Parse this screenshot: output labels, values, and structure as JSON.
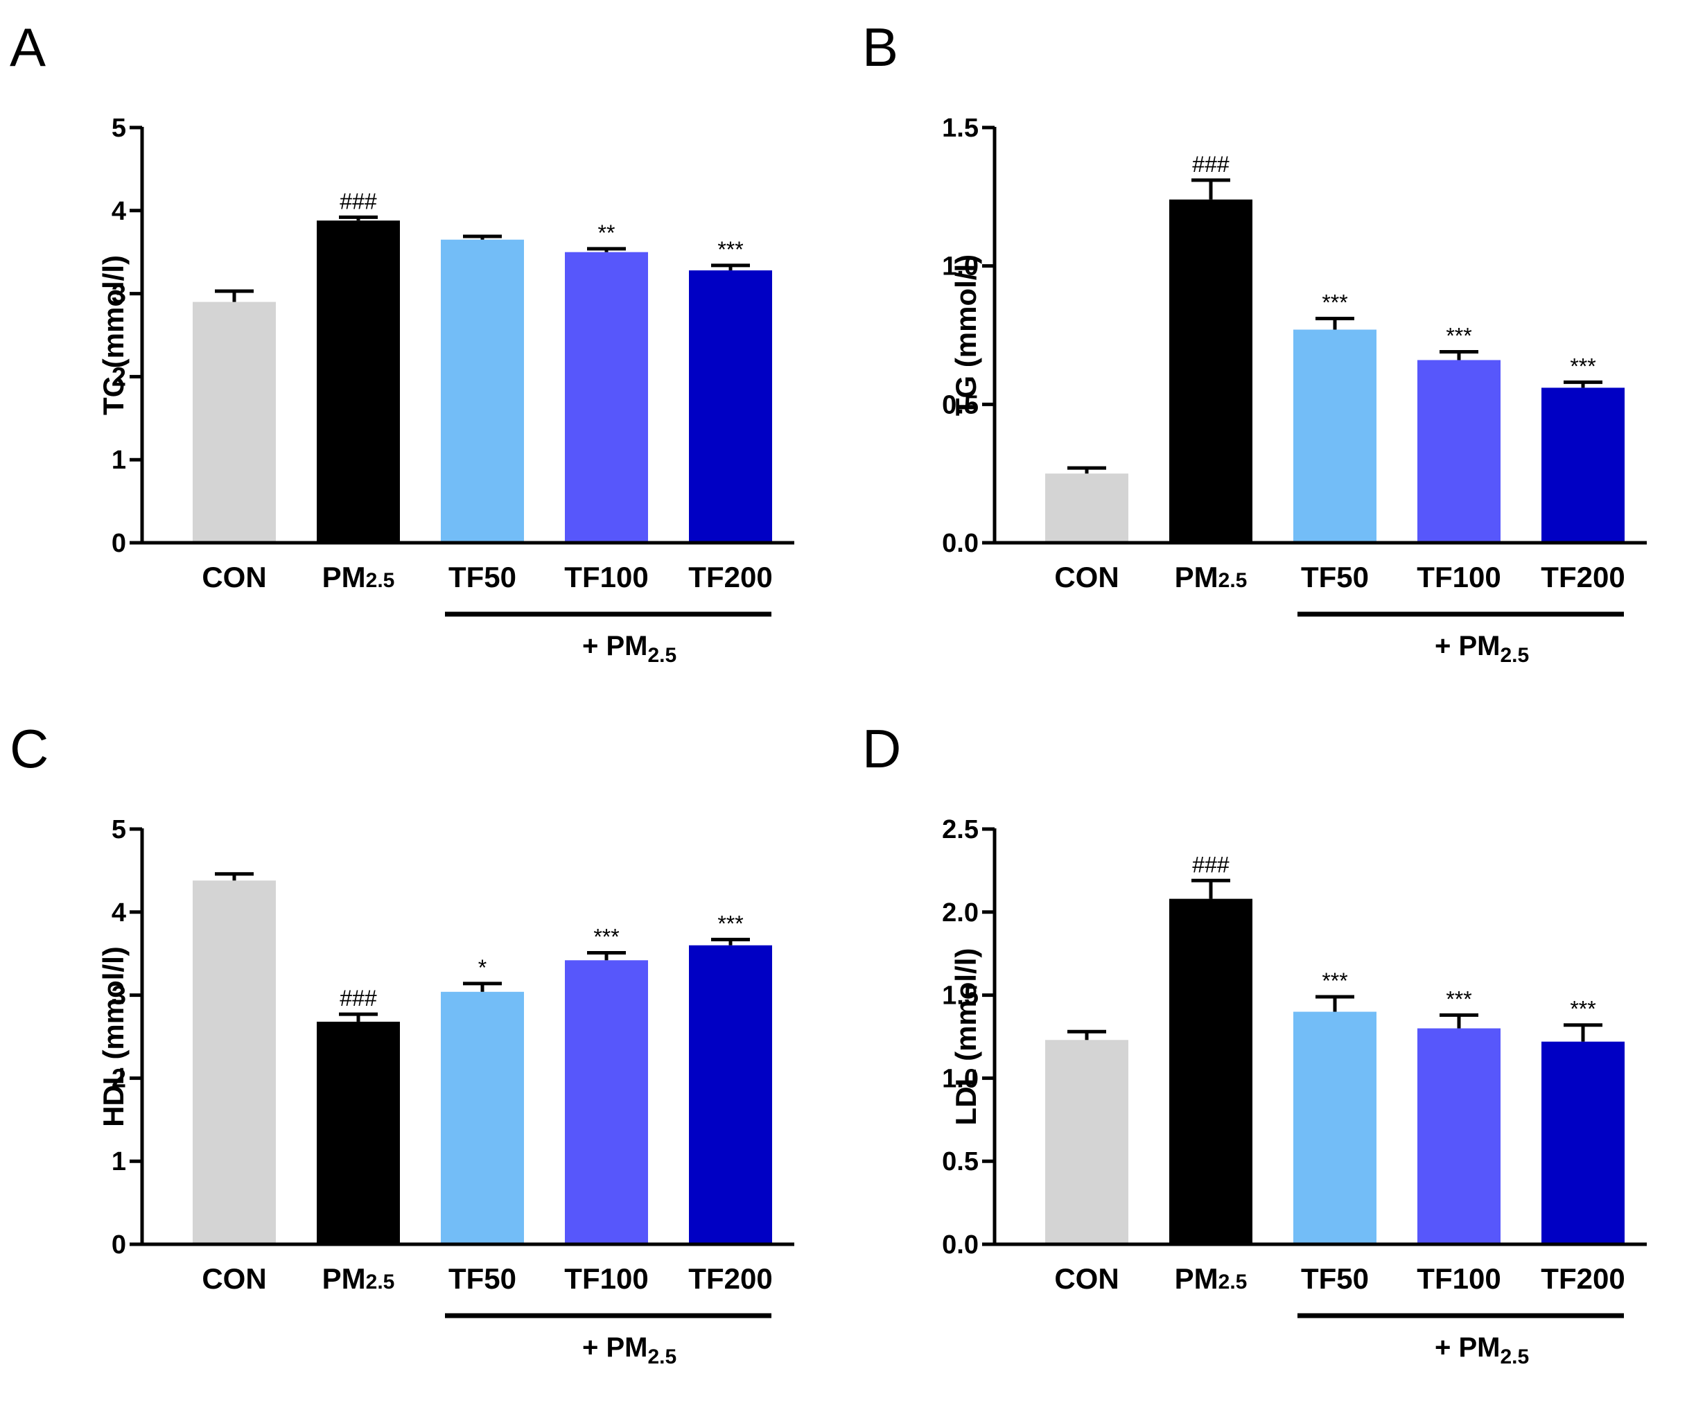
{
  "figure": {
    "group_bar_label": "+ PM",
    "group_bar_sub": "2.5"
  },
  "chart_data": [
    {
      "panel": "A",
      "type": "bar",
      "categories": [
        {
          "main": "CON",
          "sub": ""
        },
        {
          "main": "PM",
          "sub": "2.5"
        },
        {
          "main": "TF50",
          "sub": ""
        },
        {
          "main": "TF100",
          "sub": ""
        },
        {
          "main": "TF200",
          "sub": ""
        }
      ],
      "values": [
        2.9,
        3.88,
        3.65,
        3.5,
        3.28
      ],
      "errors": [
        0.13,
        0.04,
        0.04,
        0.04,
        0.06
      ],
      "annotations": [
        "",
        "###",
        "",
        "**",
        "***"
      ],
      "ylabel": "TC (mmol/l)",
      "ylim": [
        0,
        5
      ],
      "yticks": [
        0,
        1,
        2,
        3,
        4,
        5
      ],
      "ytick_labels": [
        "0",
        "1",
        "2",
        "3",
        "4",
        "5"
      ],
      "colors": [
        "#d4d4d4",
        "#000000",
        "#73bdf7",
        "#5757fb",
        "#0000c4"
      ]
    },
    {
      "panel": "B",
      "type": "bar",
      "categories": [
        {
          "main": "CON",
          "sub": ""
        },
        {
          "main": "PM",
          "sub": "2.5"
        },
        {
          "main": "TF50",
          "sub": ""
        },
        {
          "main": "TF100",
          "sub": ""
        },
        {
          "main": "TF200",
          "sub": ""
        }
      ],
      "values": [
        0.25,
        1.24,
        0.77,
        0.66,
        0.56
      ],
      "errors": [
        0.02,
        0.07,
        0.04,
        0.03,
        0.02
      ],
      "annotations": [
        "",
        "###",
        "***",
        "***",
        "***"
      ],
      "ylabel": "TG (mmol/l)",
      "ylim": [
        0,
        1.5
      ],
      "yticks": [
        0,
        0.5,
        1.0,
        1.5
      ],
      "ytick_labels": [
        "0.0",
        "0.5",
        "1.0",
        "1.5"
      ],
      "colors": [
        "#d4d4d4",
        "#000000",
        "#73bdf7",
        "#5757fb",
        "#0000c4"
      ]
    },
    {
      "panel": "C",
      "type": "bar",
      "categories": [
        {
          "main": "CON",
          "sub": ""
        },
        {
          "main": "PM",
          "sub": "2.5"
        },
        {
          "main": "TF50",
          "sub": ""
        },
        {
          "main": "TF100",
          "sub": ""
        },
        {
          "main": "TF200",
          "sub": ""
        }
      ],
      "values": [
        4.38,
        2.68,
        3.04,
        3.42,
        3.6
      ],
      "errors": [
        0.08,
        0.09,
        0.1,
        0.09,
        0.07
      ],
      "annotations": [
        "",
        "###",
        "*",
        "***",
        "***"
      ],
      "ylabel": "HDL (mmol/l)",
      "ylim": [
        0,
        5
      ],
      "yticks": [
        0,
        1,
        2,
        3,
        4,
        5
      ],
      "ytick_labels": [
        "0",
        "1",
        "2",
        "3",
        "4",
        "5"
      ],
      "colors": [
        "#d4d4d4",
        "#000000",
        "#73bdf7",
        "#5757fb",
        "#0000c4"
      ]
    },
    {
      "panel": "D",
      "type": "bar",
      "categories": [
        {
          "main": "CON",
          "sub": ""
        },
        {
          "main": "PM",
          "sub": "2.5"
        },
        {
          "main": "TF50",
          "sub": ""
        },
        {
          "main": "TF100",
          "sub": ""
        },
        {
          "main": "TF200",
          "sub": ""
        }
      ],
      "values": [
        1.23,
        2.08,
        1.4,
        1.3,
        1.22
      ],
      "errors": [
        0.05,
        0.11,
        0.09,
        0.08,
        0.1
      ],
      "annotations": [
        "",
        "###",
        "***",
        "***",
        "***"
      ],
      "ylabel": "LDL (mmol/l)",
      "ylim": [
        0,
        2.5
      ],
      "yticks": [
        0,
        0.5,
        1.0,
        1.5,
        2.0,
        2.5
      ],
      "ytick_labels": [
        "0.0",
        "0.5",
        "1.0",
        "1.5",
        "2.0",
        "2.5"
      ],
      "colors": [
        "#d4d4d4",
        "#000000",
        "#73bdf7",
        "#5757fb",
        "#0000c4"
      ]
    }
  ]
}
